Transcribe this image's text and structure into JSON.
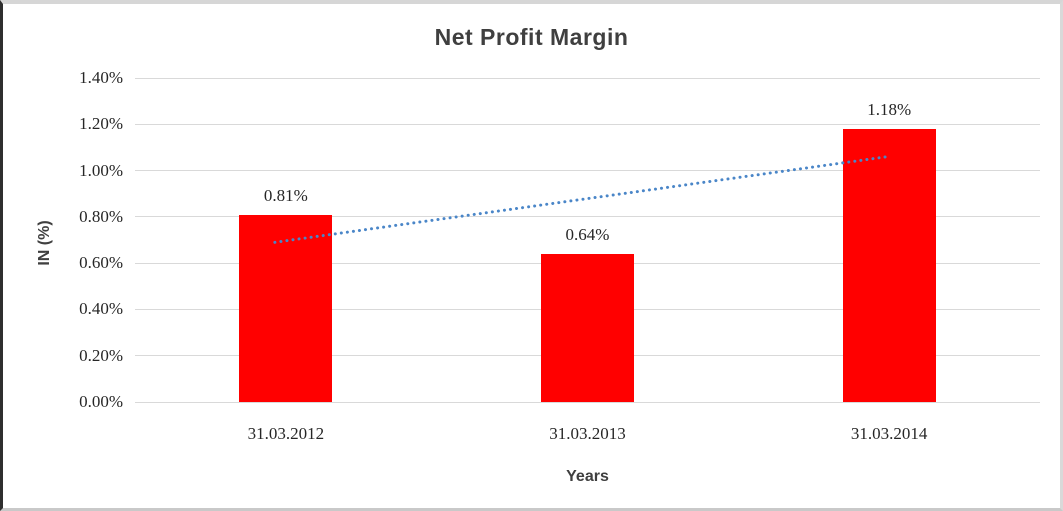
{
  "chart_data": {
    "type": "bar",
    "title": "Net Profit Margin",
    "xlabel": "Years",
    "ylabel": "IN (%)",
    "categories": [
      "31.03.2012",
      "31.03.2013",
      "31.03.2014"
    ],
    "values": [
      0.81,
      0.64,
      1.18
    ],
    "data_labels": [
      "0.81%",
      "0.64%",
      "1.18%"
    ],
    "y_ticks": [
      "1.40%",
      "1.20%",
      "1.00%",
      "0.80%",
      "0.60%",
      "0.40%",
      "0.20%",
      "0.00%"
    ],
    "ylim": [
      0,
      1.4
    ],
    "gridlines": true,
    "legend": "none",
    "bar_color": "#ff0000",
    "gridline_color": "#d9d9d9",
    "title_color": "#3f3f3f",
    "label_color": "#262626",
    "trendline": {
      "type": "linear",
      "style": "dotted",
      "color": "#4a86c8",
      "values_at_ends": [
        0.69,
        1.06
      ]
    }
  }
}
